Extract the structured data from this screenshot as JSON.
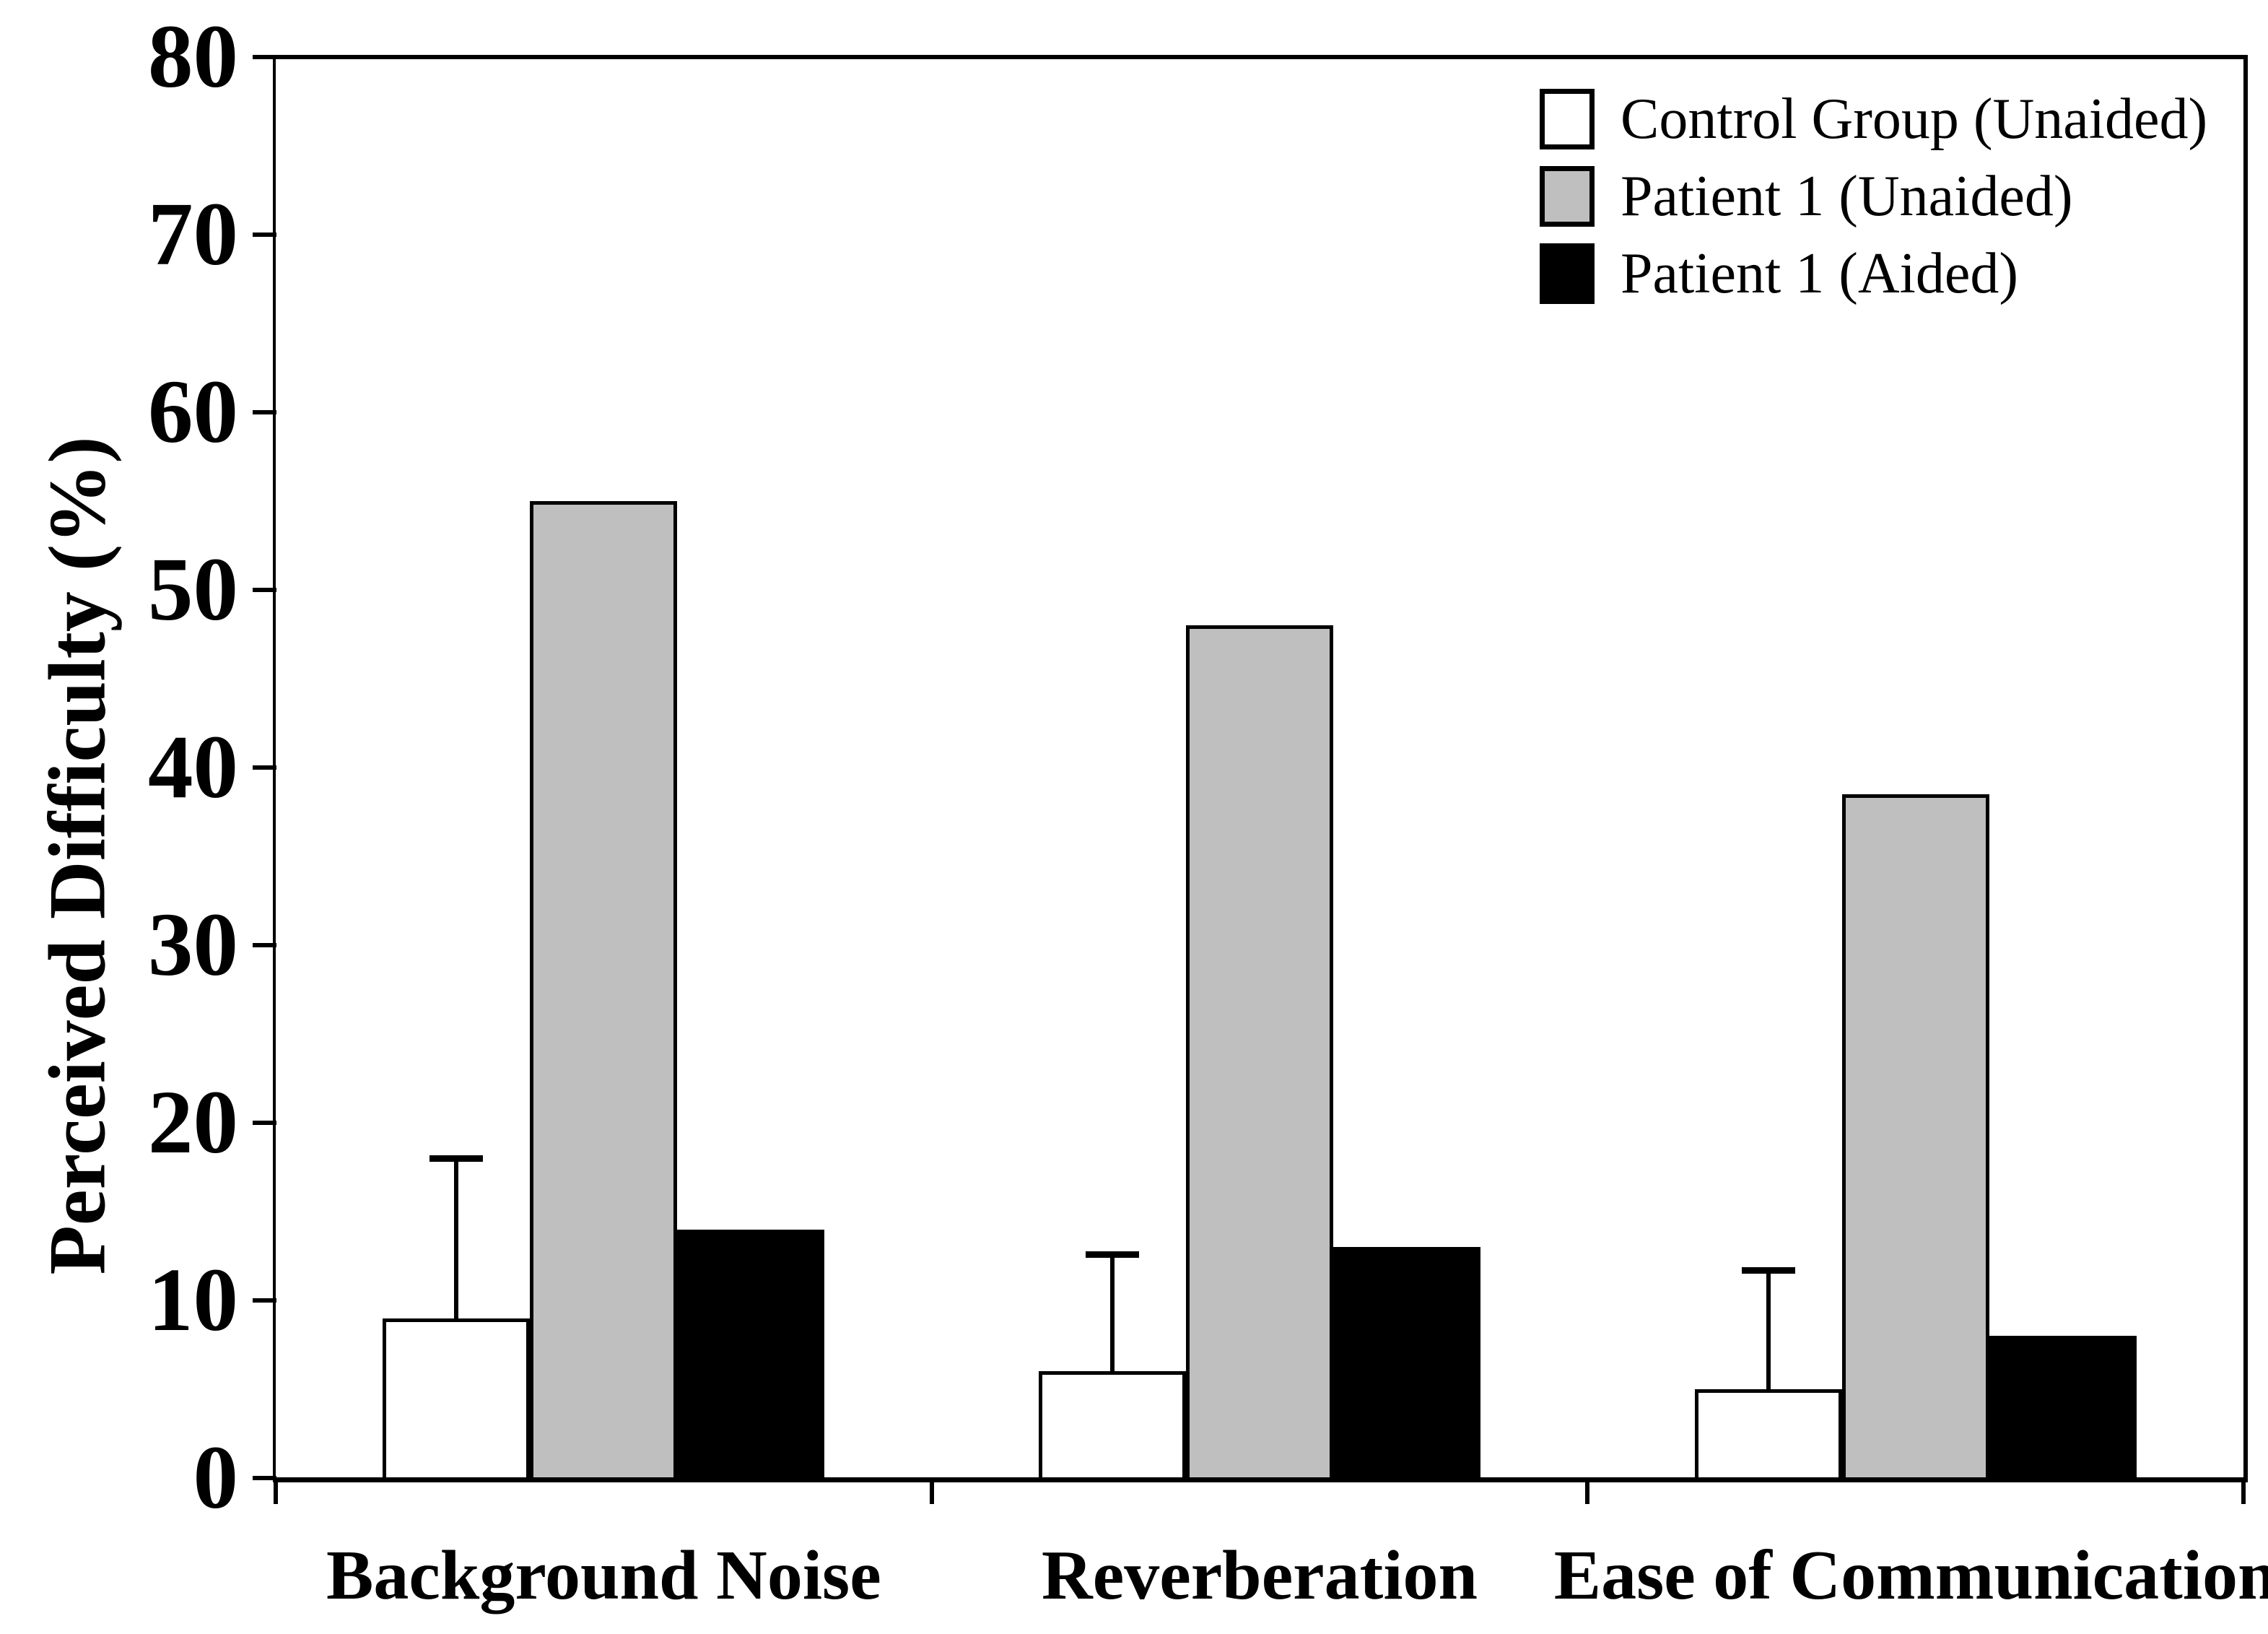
{
  "chart_data": {
    "type": "bar",
    "title": "",
    "ylabel": "Perceived Difficulty (%)",
    "xlabel": "",
    "ylim": [
      0,
      80
    ],
    "yticks": [
      0,
      10,
      20,
      30,
      40,
      50,
      60,
      70,
      80
    ],
    "grid": false,
    "legend_position": "top-right",
    "categories": [
      "Background Noise",
      "Reverberation",
      "Ease of Communication"
    ],
    "series": [
      {
        "name": "Control Group (Unaided)",
        "fill": "#ffffff",
        "values": [
          9,
          6,
          5
        ],
        "error_bar_top": [
          18,
          12.6,
          11.7
        ]
      },
      {
        "name": "Patient 1 (Unaided)",
        "fill": "#bfbfbf",
        "values": [
          55,
          48,
          38.5
        ]
      },
      {
        "name": "Patient 1 (Aided)",
        "fill": "#000000",
        "values": [
          14,
          13,
          8
        ]
      }
    ],
    "colors": {
      "axis": "#000000",
      "background": "#ffffff"
    }
  }
}
